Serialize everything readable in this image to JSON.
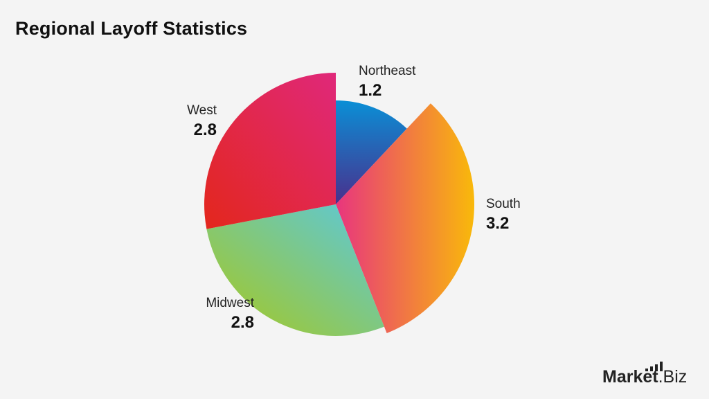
{
  "chart_data": {
    "type": "pie",
    "title": "Regional Layoff Statistics",
    "categories": [
      "Northeast",
      "South",
      "Midwest",
      "West"
    ],
    "values": [
      1.2,
      3.2,
      2.8,
      2.8
    ],
    "value_labels": [
      "1.2",
      "3.2",
      "2.8",
      "2.8"
    ],
    "legend": "none",
    "colors": {
      "Northeast": [
        "#0a8fd6",
        "#4a2f8c"
      ],
      "South": [
        "#e8357e",
        "#f9b90a"
      ],
      "Midwest": [
        "#a8c81a",
        "#5ac8e0"
      ],
      "West": [
        "#e3271c",
        "#e0287a"
      ]
    }
  },
  "logo": {
    "part1": "Market",
    "part2": ".Biz"
  }
}
